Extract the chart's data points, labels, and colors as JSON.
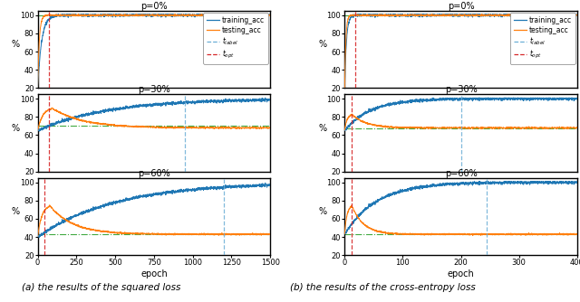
{
  "fig_width": 6.4,
  "fig_height": 3.34,
  "dpi": 100,
  "caption_a": "(a) the results of the squared loss",
  "caption_b": "(b) the results of the cross-entropy loss",
  "panels": [
    {
      "subplots": [
        {
          "p_label": "p=0%",
          "xlim": 1500,
          "ylim": [
            20,
            105
          ],
          "yticks": [
            20,
            40,
            60,
            80,
            100
          ],
          "xticks": [
            0,
            250,
            500,
            750,
            1000,
            1250,
            1500
          ],
          "t_label": null,
          "t_opt": 75,
          "green_hline": 100,
          "train_start": 20,
          "train_end": 100,
          "train_tau": 25,
          "test_start": 20,
          "test_end": 100,
          "test_tau": 10,
          "test_peak": null,
          "test_fall_tau": null
        },
        {
          "p_label": "p=30%",
          "xlim": 1500,
          "ylim": [
            20,
            105
          ],
          "yticks": [
            20,
            40,
            60,
            80,
            100
          ],
          "xticks": [
            0,
            250,
            500,
            750,
            1000,
            1250,
            1500
          ],
          "t_label": 950,
          "t_opt": 70,
          "green_hline": 70,
          "train_start": 65,
          "train_end": 100,
          "train_tau": 450,
          "test_start": 65,
          "test_end": 68,
          "test_peak": 90,
          "test_peak_tau": 30,
          "test_fall_tau": 200
        },
        {
          "p_label": "p=60%",
          "xlim": 1500,
          "ylim": [
            20,
            105
          ],
          "yticks": [
            20,
            40,
            60,
            80,
            100
          ],
          "xticks": [
            0,
            250,
            500,
            750,
            1000,
            1250,
            1500
          ],
          "t_label": 1200,
          "t_opt": 45,
          "green_hline": 43,
          "train_start": 40,
          "train_end": 100,
          "train_tau": 500,
          "test_start": 40,
          "test_end": 43,
          "test_peak": 75,
          "test_peak_tau": 25,
          "test_fall_tau": 150
        }
      ]
    },
    {
      "subplots": [
        {
          "p_label": "p=0%",
          "xlim": 400,
          "ylim": [
            20,
            105
          ],
          "yticks": [
            20,
            40,
            60,
            80,
            100
          ],
          "xticks": [
            0,
            100,
            200,
            300,
            400
          ],
          "t_label": null,
          "t_opt": 18,
          "green_hline": 100,
          "train_start": 15,
          "train_end": 100,
          "train_tau": 3,
          "test_start": 15,
          "test_end": 100,
          "test_tau": 2,
          "test_peak": null,
          "test_fall_tau": null
        },
        {
          "p_label": "p=30%",
          "xlim": 400,
          "ylim": [
            20,
            105
          ],
          "yticks": [
            20,
            40,
            60,
            80,
            100
          ],
          "xticks": [
            0,
            100,
            200,
            300,
            400
          ],
          "t_label": 200,
          "t_opt": 12,
          "green_hline": 67,
          "train_start": 65,
          "train_end": 100,
          "train_tau": 45,
          "test_start": 65,
          "test_end": 68,
          "test_peak": 83,
          "test_peak_tau": 4,
          "test_fall_tau": 25
        },
        {
          "p_label": "p=60%",
          "xlim": 400,
          "ylim": [
            20,
            105
          ],
          "yticks": [
            20,
            40,
            60,
            80,
            100
          ],
          "xticks": [
            0,
            100,
            200,
            300,
            400
          ],
          "t_label": 245,
          "t_opt": 12,
          "green_hline": 43,
          "train_start": 43,
          "train_end": 100,
          "train_tau": 55,
          "test_start": 43,
          "test_end": 43,
          "test_peak": 75,
          "test_peak_tau": 4,
          "test_fall_tau": 20
        }
      ]
    }
  ],
  "colors": {
    "train": "#1f77b4",
    "test": "#ff7f0e",
    "t_label": "#6baed6",
    "t_opt": "#d62728",
    "green": "#2ca02c"
  }
}
